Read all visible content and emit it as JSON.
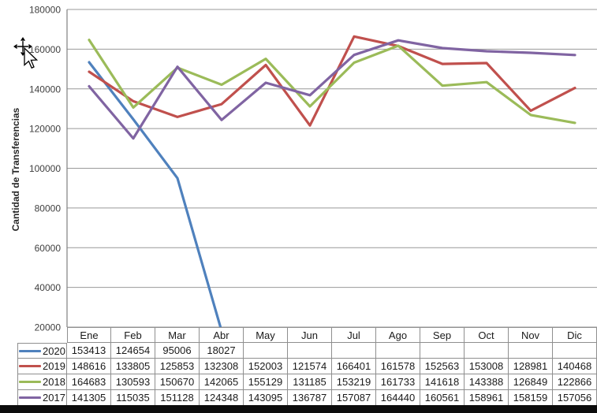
{
  "chart_data": {
    "type": "line",
    "title": "",
    "xlabel": "",
    "ylabel": "Cantidad de Transferencias",
    "categories": [
      "Ene",
      "Feb",
      "Mar",
      "Abr",
      "May",
      "Jun",
      "Jul",
      "Ago",
      "Sep",
      "Oct",
      "Nov",
      "Dic"
    ],
    "series": [
      {
        "name": "2020",
        "color": "#4F81BD",
        "values": [
          153413,
          124654,
          95006,
          18027,
          null,
          null,
          null,
          null,
          null,
          null,
          null,
          null
        ]
      },
      {
        "name": "2019",
        "color": "#C0504D",
        "values": [
          148616,
          133805,
          125853,
          132308,
          152003,
          121574,
          166401,
          161578,
          152563,
          153008,
          128981,
          140468
        ]
      },
      {
        "name": "2018",
        "color": "#9BBB59",
        "values": [
          164683,
          130593,
          150670,
          142065,
          155129,
          131185,
          153219,
          161733,
          141618,
          143388,
          126849,
          122866
        ]
      },
      {
        "name": "2017",
        "color": "#8064A2",
        "values": [
          141305,
          115035,
          151128,
          124348,
          143095,
          136787,
          157087,
          164440,
          160561,
          158961,
          158159,
          157056
        ]
      }
    ],
    "ylim": [
      20000,
      180000
    ],
    "y_ticks": [
      180000,
      160000,
      140000,
      120000,
      100000,
      80000,
      60000,
      40000,
      20000
    ],
    "grid": true,
    "legend_position": "table-left",
    "colors": {
      "gridline": "#999999",
      "axis_line": "#808080",
      "table_border": "#8f8f8f",
      "tick_text": "#404040",
      "table_text": "#1a1a1a",
      "window_bar": "#0c0c0c"
    }
  }
}
